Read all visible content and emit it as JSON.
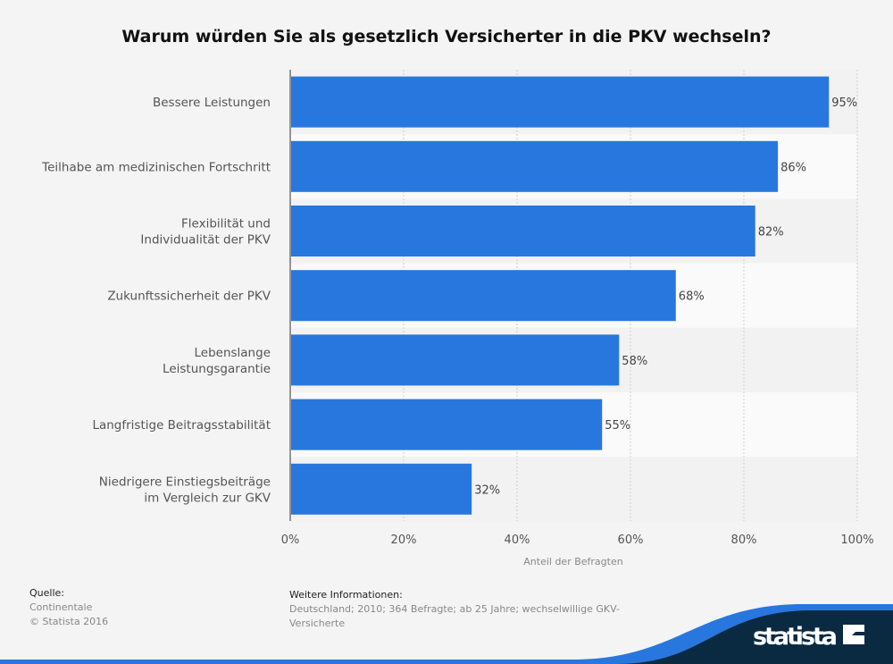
{
  "chart_data": {
    "type": "bar",
    "orientation": "horizontal",
    "title": "Warum würden Sie als gesetzlich Versicherter in die PKV wechseln?",
    "xlabel": "Anteil der Befragten",
    "categories": [
      [
        "Bessere Leistungen"
      ],
      [
        "Teilhabe am medizinischen Fortschritt"
      ],
      [
        "Flexibilität und",
        "Individualität der PKV"
      ],
      [
        "Zukunftssicherheit der PKV"
      ],
      [
        "Lebenslange",
        "Leistungsgarantie"
      ],
      [
        "Langfristige Beitragsstabilität"
      ],
      [
        "Niedrigere Einstiegsbeiträge",
        "im Vergleich zur GKV"
      ]
    ],
    "values": [
      95,
      86,
      82,
      68,
      58,
      55,
      32
    ],
    "value_labels": [
      "95%",
      "86%",
      "82%",
      "68%",
      "58%",
      "55%",
      "32%"
    ],
    "xlim": [
      0,
      100
    ],
    "xticks": [
      0,
      20,
      40,
      60,
      80,
      100
    ],
    "xtick_labels": [
      "0%",
      "20%",
      "40%",
      "60%",
      "80%",
      "100%"
    ],
    "grid": true,
    "bar_color": "#2877de"
  },
  "footer": {
    "source_heading": "Quelle:",
    "source": "Continentale",
    "copyright": "© Statista 2016",
    "info_heading": "Weitere Informationen:",
    "info": "Deutschland; 2010; 364 Befragte; ab 25 Jahre; wechselwillige GKV-Versicherte"
  },
  "logo": {
    "text": "statista",
    "colors": {
      "dark": "#0a2a42",
      "accent": "#2877de"
    }
  }
}
